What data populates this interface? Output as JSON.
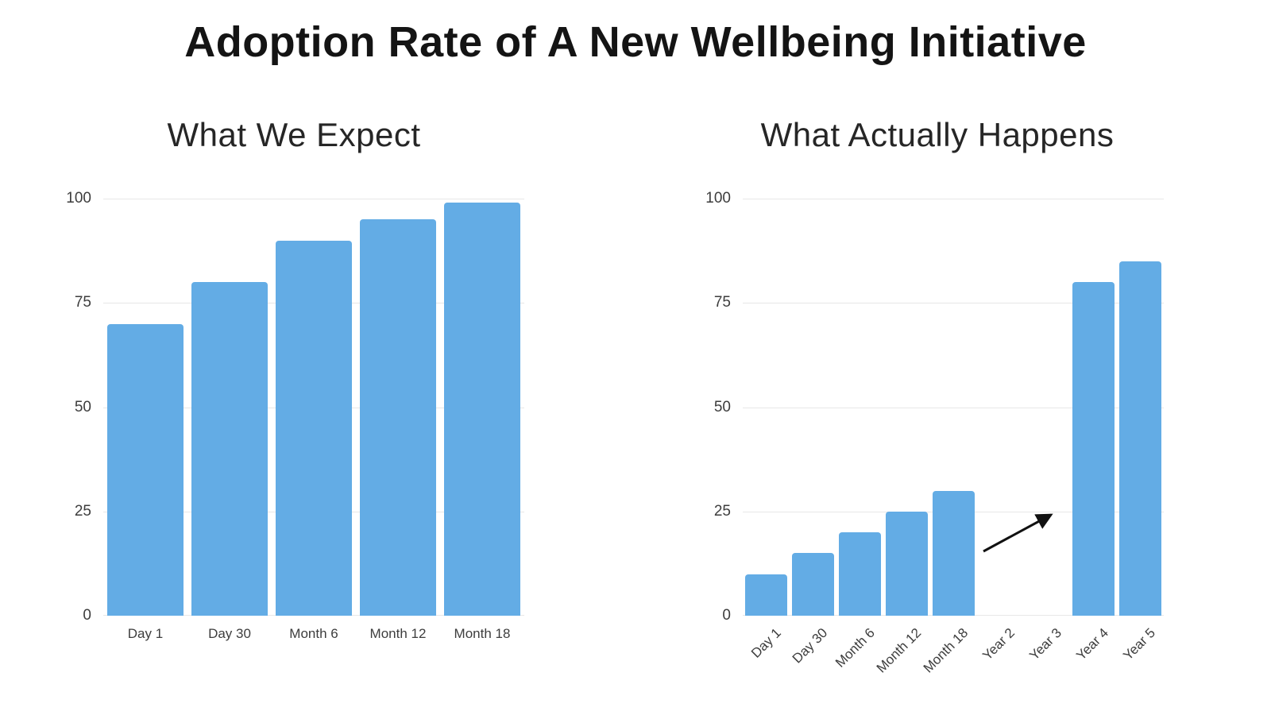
{
  "page": {
    "title": "Adoption Rate of A New Wellbeing Initiative"
  },
  "colors": {
    "bar": "#63ACE5",
    "grid": "#e7e7e7",
    "arrow": "#111111",
    "text": "#3d3d3d"
  },
  "chart_data": [
    {
      "type": "bar",
      "title": "What We Expect",
      "categories": [
        "Day 1",
        "Day 30",
        "Month 6",
        "Month 12",
        "Month 18"
      ],
      "values": [
        70,
        80,
        90,
        95,
        99
      ],
      "ylim": [
        0,
        100
      ],
      "yticks": [
        0,
        25,
        50,
        75,
        100
      ],
      "grid": true,
      "x_label_rotation": 0,
      "legend": "none"
    },
    {
      "type": "bar",
      "title": "What Actually Happens",
      "categories": [
        "Day 1",
        "Day 30",
        "Month 6",
        "Month 12",
        "Month 18",
        "Year 2",
        "Year 3",
        "Year 4",
        "Year 5"
      ],
      "values": [
        10,
        15,
        20,
        25,
        30,
        0,
        0,
        80,
        85
      ],
      "ylim": [
        0,
        100
      ],
      "yticks": [
        0,
        25,
        50,
        75,
        100
      ],
      "grid": true,
      "x_label_rotation": -45,
      "legend": "none",
      "annotation": {
        "type": "arrow",
        "from": [
          303,
          444
        ],
        "to": [
          388,
          398
        ]
      }
    }
  ]
}
